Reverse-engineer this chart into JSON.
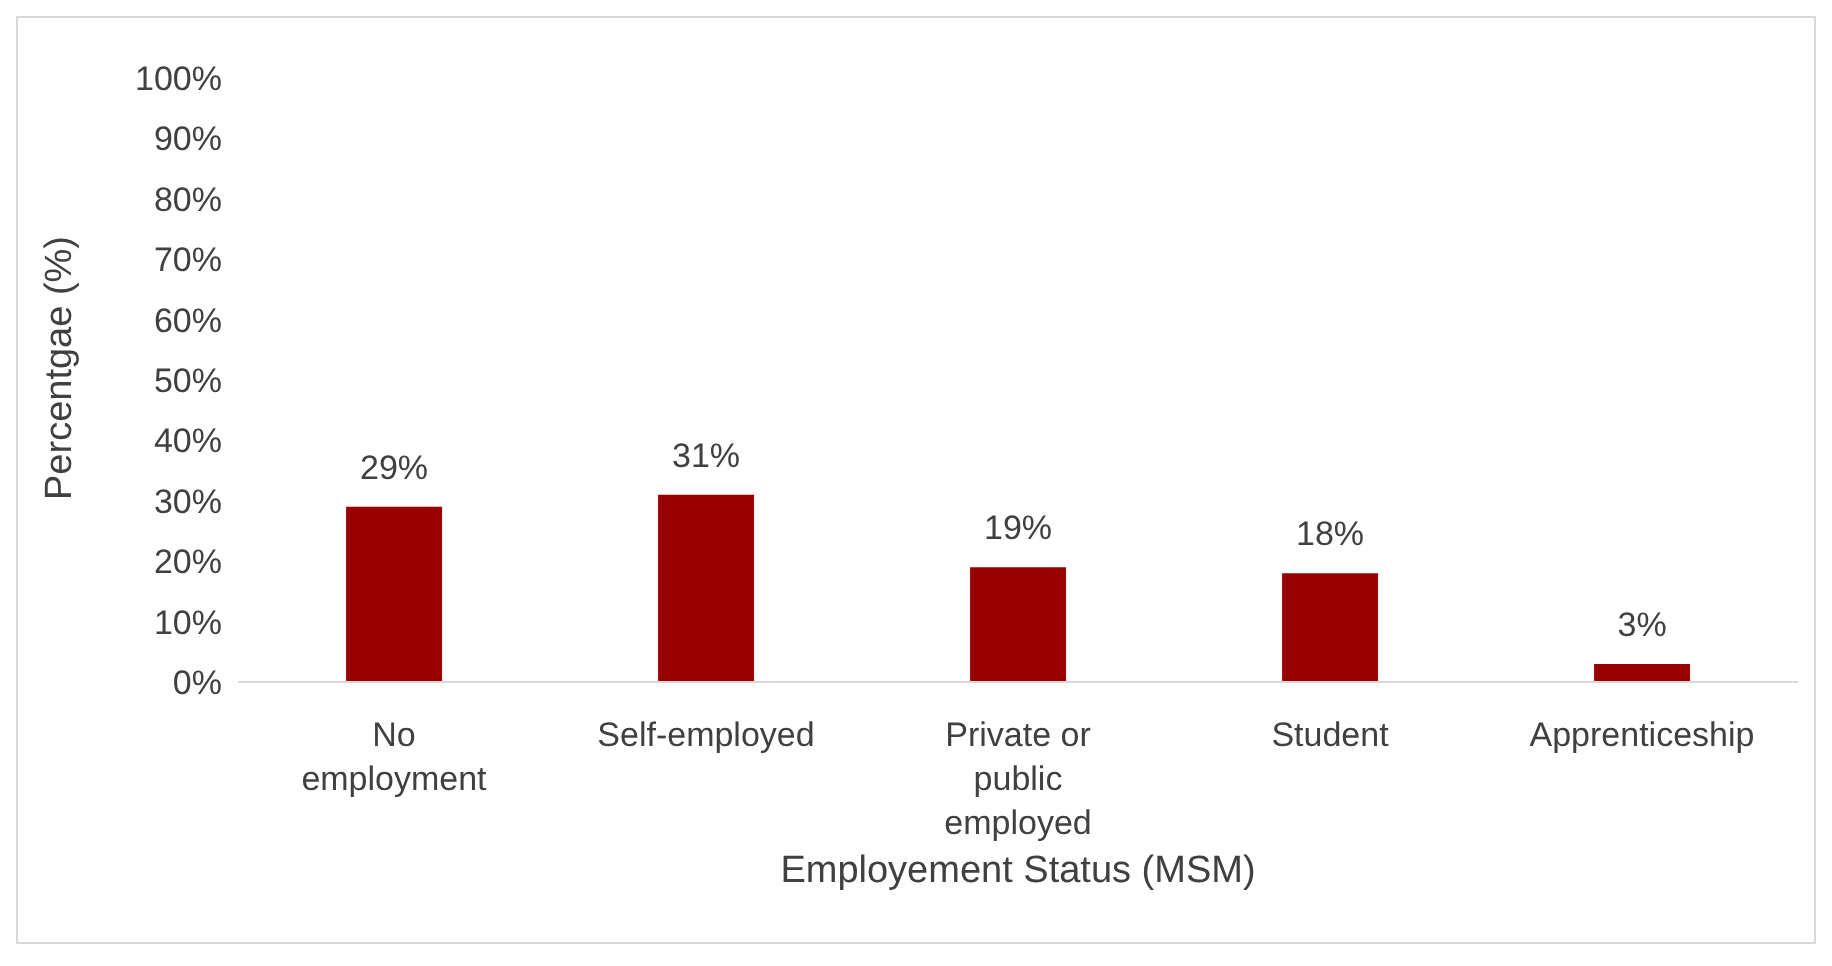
{
  "chart_data": {
    "type": "bar",
    "xlabel": "Employement Status (MSM)",
    "ylabel": "Percentgae (%)",
    "categories": [
      "No employment",
      "Self-employed",
      "Private or public employed",
      "Student",
      "Apprenticeship"
    ],
    "values": [
      29,
      31,
      19,
      18,
      3
    ],
    "value_labels": [
      "29%",
      "31%",
      "19%",
      "18%",
      "3%"
    ],
    "color": "#990000",
    "ylim": [
      0,
      100
    ],
    "yticks": [
      {
        "value": 0,
        "label": "0%"
      },
      {
        "value": 10,
        "label": "10%"
      },
      {
        "value": 20,
        "label": "20%"
      },
      {
        "value": 30,
        "label": "30%"
      },
      {
        "value": 40,
        "label": "40%"
      },
      {
        "value": 50,
        "label": "50%"
      },
      {
        "value": 60,
        "label": "60%"
      },
      {
        "value": 70,
        "label": "70%"
      },
      {
        "value": 80,
        "label": "80%"
      },
      {
        "value": 90,
        "label": "90%"
      },
      {
        "value": 100,
        "label": "100%"
      }
    ],
    "grid": false,
    "legend": false
  }
}
